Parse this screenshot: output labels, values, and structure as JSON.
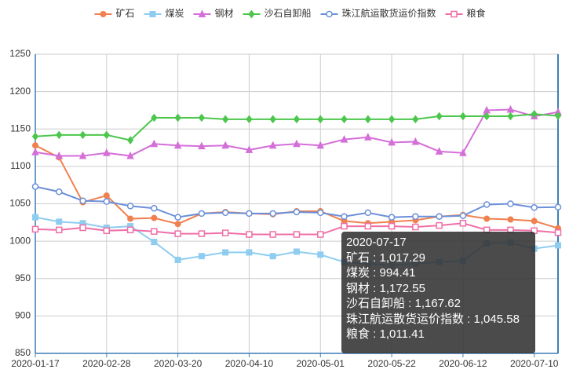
{
  "chart_data": {
    "type": "line",
    "categories": [
      "2020-01-17",
      null,
      null,
      "2020-02-28",
      null,
      null,
      "2020-03-20",
      null,
      null,
      "2020-04-10",
      null,
      null,
      "2020-05-01",
      null,
      null,
      "2020-05-22",
      null,
      null,
      "2020-06-12",
      null,
      null,
      "2020-07-10",
      null
    ],
    "series": [
      {
        "name": "矿石",
        "color": "#f0804f",
        "marker": "circle",
        "values": [
          1128,
          1112,
          1052,
          1061,
          1030,
          1031,
          1023,
          1037,
          1039,
          1037,
          1036,
          1040,
          1040,
          1027,
          1024,
          1026,
          1028,
          1033,
          1035,
          1030,
          1029,
          1027,
          1017.29
        ]
      },
      {
        "name": "煤炭",
        "color": "#8ecdf0",
        "marker": "square",
        "values": [
          1032,
          1026,
          1024,
          1018,
          1020,
          999,
          975,
          980,
          985,
          985,
          980,
          986,
          982,
          972,
          970,
          968,
          970,
          972,
          974,
          997,
          998,
          990,
          994.41
        ]
      },
      {
        "name": "钢材",
        "color": "#d46fd8",
        "marker": "triangle",
        "values": [
          1119,
          1114,
          1114,
          1118,
          1114,
          1130,
          1128,
          1127,
          1128,
          1122,
          1128,
          1130,
          1128,
          1136,
          1139,
          1132,
          1133,
          1120,
          1118,
          1175,
          1176,
          1167,
          1172.55
        ]
      },
      {
        "name": "沙石自卸船",
        "color": "#4cc64c",
        "marker": "diamond",
        "values": [
          1140,
          1142,
          1142,
          1142,
          1135,
          1165,
          1165,
          1165,
          1163,
          1163,
          1163,
          1163,
          1163,
          1163,
          1163,
          1163,
          1163,
          1167,
          1167,
          1167,
          1167,
          1170,
          1167.62
        ]
      },
      {
        "name": "珠江航运散货运价指数",
        "color": "#6b8fd8",
        "marker": "empty-circle",
        "values": [
          1073,
          1066,
          1054,
          1053,
          1047,
          1044,
          1032,
          1037,
          1038,
          1037,
          1037,
          1039,
          1038,
          1033,
          1038,
          1032,
          1033,
          1033,
          1034,
          1049,
          1050,
          1045,
          1045.58
        ]
      },
      {
        "name": "粮食",
        "color": "#ef6fa8",
        "marker": "empty-square",
        "values": [
          1016,
          1015,
          1018,
          1014,
          1015,
          1013,
          1010,
          1010,
          1011,
          1009,
          1009,
          1009,
          1009,
          1020,
          1020,
          1020,
          1019,
          1021,
          1024,
          1015,
          1015,
          1014,
          1011.41
        ]
      }
    ],
    "ylim": [
      850,
      1250
    ],
    "yticks": [
      850,
      900,
      950,
      1000,
      1050,
      1100,
      1150,
      1200,
      1250
    ],
    "grid": true,
    "tooltip": {
      "title": "2020-07-17",
      "value_labels": [
        "1,017.29",
        "994.41",
        "1,172.55",
        "1,167.62",
        "1,045.58",
        "1,011.41"
      ]
    }
  }
}
